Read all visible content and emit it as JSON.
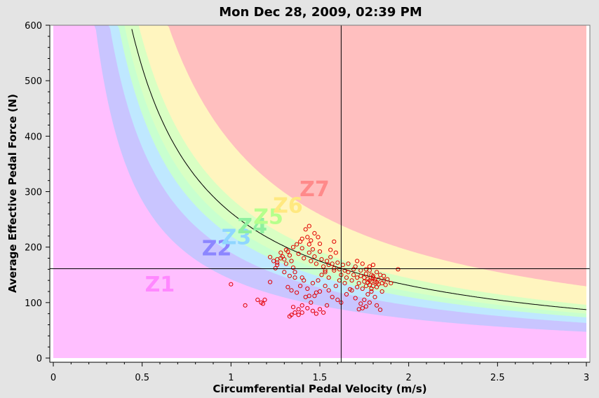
{
  "chart_data": {
    "type": "scatter",
    "title": "Mon Dec 28, 2009, 02:39 PM",
    "xlabel": "Circumferential Pedal Velocity (m/s)",
    "ylabel": "Average Effective Pedal Force (N)",
    "xlim": [
      0,
      3
    ],
    "ylim": [
      0,
      600
    ],
    "x_ticks": [
      "0",
      "0.5",
      "1",
      "1.5",
      "2",
      "2.5",
      "3"
    ],
    "y_ticks": [
      "0",
      "100",
      "200",
      "300",
      "400",
      "500",
      "600"
    ],
    "grid": false,
    "crosshair": {
      "x": 1.62,
      "y": 161
    },
    "reference_curve": {
      "power_constant": 262
    },
    "zones": [
      {
        "label": "Z1",
        "color": "#ffbfff",
        "upper_constant": 0,
        "label_at": [
          0.6,
          120
        ]
      },
      {
        "label": "Z2",
        "color": "#c9c5ff",
        "upper_constant": 142,
        "label_at": [
          0.92,
          185
        ]
      },
      {
        "label": "Z3",
        "color": "#bfe8ff",
        "upper_constant": 190,
        "label_at": [
          1.03,
          205
        ]
      },
      {
        "label": "Z4",
        "color": "#c8ffcf",
        "upper_constant": 220,
        "label_at": [
          1.12,
          225
        ]
      },
      {
        "label": "Z5",
        "color": "#d9ffc3",
        "upper_constant": 240,
        "label_at": [
          1.21,
          242
        ]
      },
      {
        "label": "Z6",
        "color": "#fff5bf",
        "upper_constant": 288,
        "label_at": [
          1.32,
          262
        ]
      },
      {
        "label": "Z7",
        "color": "#ffbfbf",
        "upper_constant": 388,
        "label_at": [
          1.47,
          292
        ]
      }
    ],
    "zone_label_colors": {
      "Z1": "#ff88ff",
      "Z2": "#8c86ff",
      "Z3": "#8fd6ff",
      "Z4": "#8ff0a0",
      "Z5": "#b6ff8c",
      "Z6": "#ffe880",
      "Z7": "#ff8a8a"
    },
    "point_color": "#e00000",
    "series": [
      {
        "points": [
          [
            1.0,
            133
          ],
          [
            1.08,
            95
          ],
          [
            1.15,
            105
          ],
          [
            1.17,
            100
          ],
          [
            1.19,
            105
          ],
          [
            1.18,
            98
          ],
          [
            1.22,
            137
          ],
          [
            1.22,
            182
          ],
          [
            1.24,
            175
          ],
          [
            1.26,
            178
          ],
          [
            1.26,
            168
          ],
          [
            1.28,
            190
          ],
          [
            1.29,
            183
          ],
          [
            1.3,
            178
          ],
          [
            1.31,
            170
          ],
          [
            1.32,
            192
          ],
          [
            1.33,
            185
          ],
          [
            1.34,
            175
          ],
          [
            1.35,
            163
          ],
          [
            1.36,
            155
          ],
          [
            1.3,
            155
          ],
          [
            1.33,
            148
          ],
          [
            1.36,
            145
          ],
          [
            1.4,
            145
          ],
          [
            1.38,
            188
          ],
          [
            1.39,
            210
          ],
          [
            1.4,
            198
          ],
          [
            1.41,
            180
          ],
          [
            1.42,
            232
          ],
          [
            1.43,
            218
          ],
          [
            1.44,
            205
          ],
          [
            1.44,
            190
          ],
          [
            1.45,
            175
          ],
          [
            1.45,
            212
          ],
          [
            1.46,
            196
          ],
          [
            1.47,
            183
          ],
          [
            1.48,
            170
          ],
          [
            1.49,
            218
          ],
          [
            1.5,
            206
          ],
          [
            1.5,
            192
          ],
          [
            1.51,
            178
          ],
          [
            1.52,
            165
          ],
          [
            1.53,
            158
          ],
          [
            1.54,
            175
          ],
          [
            1.55,
            168
          ],
          [
            1.56,
            182
          ],
          [
            1.57,
            170
          ],
          [
            1.58,
            162
          ],
          [
            1.59,
            190
          ],
          [
            1.6,
            172
          ],
          [
            1.61,
            160
          ],
          [
            1.62,
            150
          ],
          [
            1.63,
            168
          ],
          [
            1.64,
            158
          ],
          [
            1.65,
            145
          ],
          [
            1.66,
            155
          ],
          [
            1.68,
            140
          ],
          [
            1.69,
            150
          ],
          [
            1.7,
            165
          ],
          [
            1.71,
            145
          ],
          [
            1.72,
            135
          ],
          [
            1.73,
            148
          ],
          [
            1.74,
            125
          ],
          [
            1.75,
            138
          ],
          [
            1.76,
            152
          ],
          [
            1.77,
            143
          ],
          [
            1.78,
            132
          ],
          [
            1.79,
            125
          ],
          [
            1.8,
            148
          ],
          [
            1.81,
            138
          ],
          [
            1.82,
            128
          ],
          [
            1.83,
            142
          ],
          [
            1.84,
            150
          ],
          [
            1.85,
            135
          ],
          [
            1.86,
            140
          ],
          [
            1.87,
            132
          ],
          [
            1.9,
            135
          ],
          [
            1.94,
            160
          ],
          [
            1.76,
            160
          ],
          [
            1.78,
            165
          ],
          [
            1.8,
            168
          ],
          [
            1.82,
            155
          ],
          [
            1.77,
            115
          ],
          [
            1.79,
            120
          ],
          [
            1.81,
            110
          ],
          [
            1.75,
            105
          ],
          [
            1.73,
            98
          ],
          [
            1.72,
            88
          ],
          [
            1.74,
            90
          ],
          [
            1.76,
            93
          ],
          [
            1.78,
            100
          ],
          [
            1.82,
            95
          ],
          [
            1.84,
            87
          ],
          [
            1.7,
            108
          ],
          [
            1.65,
            115
          ],
          [
            1.67,
            124
          ],
          [
            1.6,
            105
          ],
          [
            1.62,
            100
          ],
          [
            1.57,
            110
          ],
          [
            1.55,
            122
          ],
          [
            1.53,
            130
          ],
          [
            1.5,
            120
          ],
          [
            1.48,
            118
          ],
          [
            1.47,
            112
          ],
          [
            1.45,
            100
          ],
          [
            1.43,
            90
          ],
          [
            1.4,
            82
          ],
          [
            1.38,
            78
          ],
          [
            1.36,
            82
          ],
          [
            1.34,
            78
          ],
          [
            1.33,
            75
          ],
          [
            1.35,
            92
          ],
          [
            1.38,
            88
          ],
          [
            1.4,
            95
          ],
          [
            1.42,
            110
          ],
          [
            1.44,
            112
          ],
          [
            1.46,
            85
          ],
          [
            1.48,
            80
          ],
          [
            1.5,
            88
          ],
          [
            1.52,
            82
          ],
          [
            1.54,
            95
          ],
          [
            1.32,
            128
          ],
          [
            1.34,
            122
          ],
          [
            1.37,
            118
          ],
          [
            1.39,
            130
          ],
          [
            1.41,
            140
          ],
          [
            1.43,
            125
          ],
          [
            1.46,
            135
          ],
          [
            1.49,
            140
          ],
          [
            1.51,
            150
          ],
          [
            1.53,
            155
          ],
          [
            1.55,
            145
          ],
          [
            1.58,
            158
          ],
          [
            1.56,
            195
          ],
          [
            1.58,
            210
          ],
          [
            1.47,
            225
          ],
          [
            1.44,
            238
          ],
          [
            1.4,
            215
          ],
          [
            1.37,
            205
          ],
          [
            1.35,
            200
          ],
          [
            1.31,
            195
          ],
          [
            1.28,
            180
          ],
          [
            1.26,
            172
          ],
          [
            1.25,
            162
          ],
          [
            1.66,
            170
          ],
          [
            1.69,
            160
          ],
          [
            1.71,
            175
          ],
          [
            1.74,
            170
          ],
          [
            1.78,
            158
          ],
          [
            1.8,
            145
          ],
          [
            1.83,
            133
          ],
          [
            1.85,
            120
          ],
          [
            1.79,
            138
          ],
          [
            1.76,
            130
          ],
          [
            1.81,
            142
          ],
          [
            1.78,
            140
          ],
          [
            1.8,
            130
          ],
          [
            1.77,
            136
          ],
          [
            1.82,
            136
          ],
          [
            1.79,
            150
          ],
          [
            1.75,
            145
          ],
          [
            1.73,
            158
          ],
          [
            1.71,
            128
          ],
          [
            1.68,
            122
          ],
          [
            1.64,
            135
          ],
          [
            1.61,
            140
          ],
          [
            1.59,
            130
          ],
          [
            1.86,
            148
          ],
          [
            1.88,
            142
          ]
        ]
      }
    ]
  }
}
